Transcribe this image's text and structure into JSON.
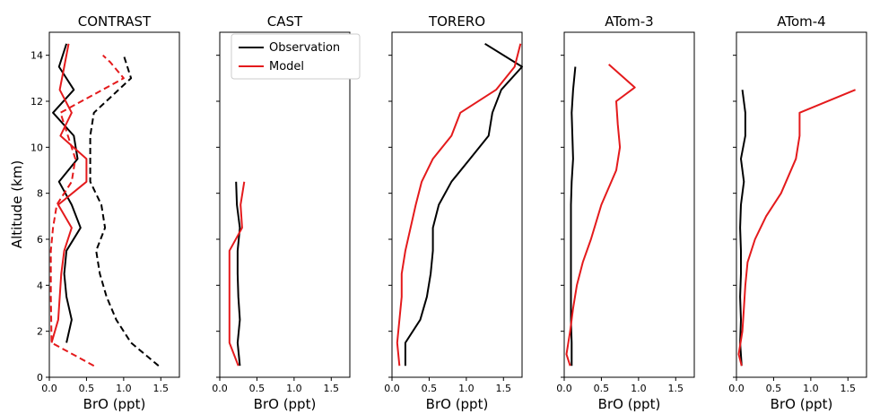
{
  "ylabel": "Altitude (km)",
  "xlabel": "BrO (ppt)",
  "legend": {
    "observation": "Observation",
    "model": "Model"
  },
  "colors": {
    "observation": "#000000",
    "model": "#e41a1c"
  },
  "chart_data": [
    {
      "type": "line",
      "title": "CONTRAST",
      "xlim": [
        0,
        1.75
      ],
      "ylim": [
        0,
        15
      ],
      "xticks": [
        "0.0",
        "0.5",
        "1.0",
        "1.5"
      ],
      "yticks": [
        "0",
        "2",
        "4",
        "6",
        "8",
        "10",
        "12",
        "14"
      ],
      "series": [
        {
          "name": "Observation",
          "style": "solid",
          "color": "#000000",
          "points": [
            [
              0.23,
              1.5
            ],
            [
              0.3,
              2.5
            ],
            [
              0.23,
              3.5
            ],
            [
              0.2,
              4.5
            ],
            [
              0.23,
              5.5
            ],
            [
              0.42,
              6.5
            ],
            [
              0.3,
              7.5
            ],
            [
              0.13,
              8.5
            ],
            [
              0.38,
              9.5
            ],
            [
              0.33,
              10.5
            ],
            [
              0.05,
              11.5
            ],
            [
              0.33,
              12.5
            ],
            [
              0.13,
              13.5
            ],
            [
              0.23,
              14.5
            ]
          ]
        },
        {
          "name": "Observation",
          "style": "dashed",
          "color": "#000000",
          "points": [
            [
              1.47,
              0.5
            ],
            [
              1.1,
              1.5
            ],
            [
              0.9,
              2.5
            ],
            [
              0.77,
              3.5
            ],
            [
              0.68,
              4.5
            ],
            [
              0.63,
              5.5
            ],
            [
              0.75,
              6.5
            ],
            [
              0.7,
              7.5
            ],
            [
              0.55,
              8.5
            ],
            [
              0.55,
              9.5
            ],
            [
              0.55,
              10.5
            ],
            [
              0.6,
              11.5
            ],
            [
              1.1,
              13.0
            ],
            [
              1.0,
              14.0
            ]
          ]
        },
        {
          "name": "Model",
          "style": "solid",
          "color": "#e41a1c",
          "points": [
            [
              0.03,
              1.5
            ],
            [
              0.12,
              2.5
            ],
            [
              0.14,
              3.5
            ],
            [
              0.16,
              4.5
            ],
            [
              0.2,
              5.5
            ],
            [
              0.3,
              6.5
            ],
            [
              0.12,
              7.5
            ],
            [
              0.5,
              8.5
            ],
            [
              0.5,
              9.5
            ],
            [
              0.15,
              10.5
            ],
            [
              0.3,
              11.5
            ],
            [
              0.14,
              12.5
            ],
            [
              0.2,
              13.5
            ],
            [
              0.26,
              14.5
            ]
          ]
        },
        {
          "name": "Model",
          "style": "dashed",
          "color": "#e41a1c",
          "points": [
            [
              0.6,
              0.5
            ],
            [
              0.03,
              1.5
            ],
            [
              0.02,
              3.5
            ],
            [
              0.02,
              5.5
            ],
            [
              0.05,
              6.5
            ],
            [
              0.1,
              7.5
            ],
            [
              0.3,
              8.5
            ],
            [
              0.35,
              9.5
            ],
            [
              0.25,
              10.5
            ],
            [
              0.15,
              11.5
            ],
            [
              1.0,
              13.0
            ],
            [
              0.82,
              13.7
            ],
            [
              0.72,
              14.0
            ]
          ]
        }
      ]
    },
    {
      "type": "line",
      "title": "CAST",
      "xlim": [
        0,
        1.75
      ],
      "ylim": [
        0,
        15
      ],
      "xticks": [
        "0.0",
        "0.5",
        "1.0",
        "1.5"
      ],
      "yticks": [
        "0",
        "2",
        "4",
        "6",
        "8",
        "10",
        "12",
        "14"
      ],
      "series": [
        {
          "name": "Observation",
          "style": "solid",
          "color": "#000000",
          "points": [
            [
              0.27,
              0.5
            ],
            [
              0.24,
              1.5
            ],
            [
              0.27,
              2.5
            ],
            [
              0.25,
              3.5
            ],
            [
              0.24,
              4.5
            ],
            [
              0.24,
              5.5
            ],
            [
              0.27,
              6.5
            ],
            [
              0.23,
              7.5
            ],
            [
              0.22,
              8.5
            ]
          ]
        },
        {
          "name": "Model",
          "style": "solid",
          "color": "#e41a1c",
          "points": [
            [
              0.25,
              0.5
            ],
            [
              0.13,
              1.5
            ],
            [
              0.13,
              2.5
            ],
            [
              0.13,
              3.5
            ],
            [
              0.13,
              4.5
            ],
            [
              0.13,
              5.5
            ],
            [
              0.3,
              6.5
            ],
            [
              0.28,
              7.5
            ],
            [
              0.33,
              8.5
            ]
          ]
        }
      ]
    },
    {
      "type": "line",
      "title": "TORERO",
      "xlim": [
        0,
        1.75
      ],
      "ylim": [
        0,
        15
      ],
      "xticks": [
        "0.0",
        "0.5",
        "1.0",
        "1.5"
      ],
      "yticks": [
        "0",
        "2",
        "4",
        "6",
        "8",
        "10",
        "12",
        "14"
      ],
      "series": [
        {
          "name": "Observation",
          "style": "solid",
          "color": "#000000",
          "points": [
            [
              0.18,
              0.5
            ],
            [
              0.18,
              1.5
            ],
            [
              0.38,
              2.5
            ],
            [
              0.47,
              3.5
            ],
            [
              0.52,
              4.5
            ],
            [
              0.55,
              5.5
            ],
            [
              0.55,
              6.5
            ],
            [
              0.63,
              7.5
            ],
            [
              0.8,
              8.5
            ],
            [
              1.05,
              9.5
            ],
            [
              1.3,
              10.5
            ],
            [
              1.35,
              11.5
            ],
            [
              1.47,
              12.5
            ],
            [
              1.75,
              13.5
            ],
            [
              1.25,
              14.5
            ]
          ]
        },
        {
          "name": "Model",
          "style": "solid",
          "color": "#e41a1c",
          "points": [
            [
              0.1,
              0.5
            ],
            [
              0.07,
              1.5
            ],
            [
              0.1,
              2.5
            ],
            [
              0.13,
              3.5
            ],
            [
              0.13,
              4.5
            ],
            [
              0.18,
              5.5
            ],
            [
              0.25,
              6.5
            ],
            [
              0.32,
              7.5
            ],
            [
              0.4,
              8.5
            ],
            [
              0.55,
              9.5
            ],
            [
              0.8,
              10.5
            ],
            [
              0.92,
              11.5
            ],
            [
              1.4,
              12.5
            ],
            [
              1.65,
              13.5
            ],
            [
              1.73,
              14.5
            ]
          ]
        }
      ]
    },
    {
      "type": "line",
      "title": "ATom-3",
      "xlim": [
        0,
        1.75
      ],
      "ylim": [
        0,
        15
      ],
      "xticks": [
        "0.0",
        "0.5",
        "1.0",
        "1.5"
      ],
      "yticks": [
        "0",
        "2",
        "4",
        "6",
        "8",
        "10",
        "12",
        "14"
      ],
      "series": [
        {
          "name": "Observation",
          "style": "solid",
          "color": "#000000",
          "points": [
            [
              0.1,
              0.5
            ],
            [
              0.1,
              1.5
            ],
            [
              0.09,
              2.5
            ],
            [
              0.09,
              3.5
            ],
            [
              0.09,
              4.5
            ],
            [
              0.09,
              5.5
            ],
            [
              0.09,
              6.5
            ],
            [
              0.09,
              7.5
            ],
            [
              0.1,
              8.5
            ],
            [
              0.12,
              9.5
            ],
            [
              0.11,
              10.5
            ],
            [
              0.1,
              11.5
            ],
            [
              0.12,
              12.5
            ],
            [
              0.15,
              13.5
            ]
          ]
        },
        {
          "name": "Model",
          "style": "solid",
          "color": "#e41a1c",
          "points": [
            [
              0.08,
              0.5
            ],
            [
              0.03,
              1.0
            ],
            [
              0.08,
              2.0
            ],
            [
              0.12,
              3.0
            ],
            [
              0.17,
              4.0
            ],
            [
              0.25,
              5.0
            ],
            [
              0.36,
              6.0
            ],
            [
              0.5,
              7.5
            ],
            [
              0.7,
              9.0
            ],
            [
              0.75,
              10.0
            ],
            [
              0.72,
              11.0
            ],
            [
              0.7,
              12.0
            ],
            [
              0.95,
              12.6
            ],
            [
              0.6,
              13.6
            ]
          ]
        }
      ]
    },
    {
      "type": "line",
      "title": "ATom-4",
      "xlim": [
        0,
        1.75
      ],
      "ylim": [
        0,
        15
      ],
      "xticks": [
        "0.0",
        "0.5",
        "1.0",
        "1.5"
      ],
      "yticks": [
        "0",
        "2",
        "4",
        "6",
        "8",
        "10",
        "12",
        "14"
      ],
      "series": [
        {
          "name": "Observation",
          "style": "solid",
          "color": "#000000",
          "points": [
            [
              0.07,
              0.5
            ],
            [
              0.05,
              1.5
            ],
            [
              0.06,
              2.5
            ],
            [
              0.05,
              3.5
            ],
            [
              0.06,
              4.5
            ],
            [
              0.06,
              5.5
            ],
            [
              0.05,
              6.5
            ],
            [
              0.06,
              7.5
            ],
            [
              0.1,
              8.5
            ],
            [
              0.06,
              9.5
            ],
            [
              0.12,
              10.5
            ],
            [
              0.12,
              11.5
            ],
            [
              0.08,
              12.5
            ]
          ]
        },
        {
          "name": "Model",
          "style": "solid",
          "color": "#e41a1c",
          "points": [
            [
              0.07,
              0.5
            ],
            [
              0.03,
              1.0
            ],
            [
              0.08,
              2.0
            ],
            [
              0.1,
              3.0
            ],
            [
              0.12,
              4.0
            ],
            [
              0.15,
              5.0
            ],
            [
              0.25,
              6.0
            ],
            [
              0.4,
              7.0
            ],
            [
              0.6,
              8.0
            ],
            [
              0.8,
              9.5
            ],
            [
              0.85,
              10.5
            ],
            [
              0.85,
              11.5
            ],
            [
              1.6,
              12.5
            ]
          ]
        }
      ]
    }
  ]
}
